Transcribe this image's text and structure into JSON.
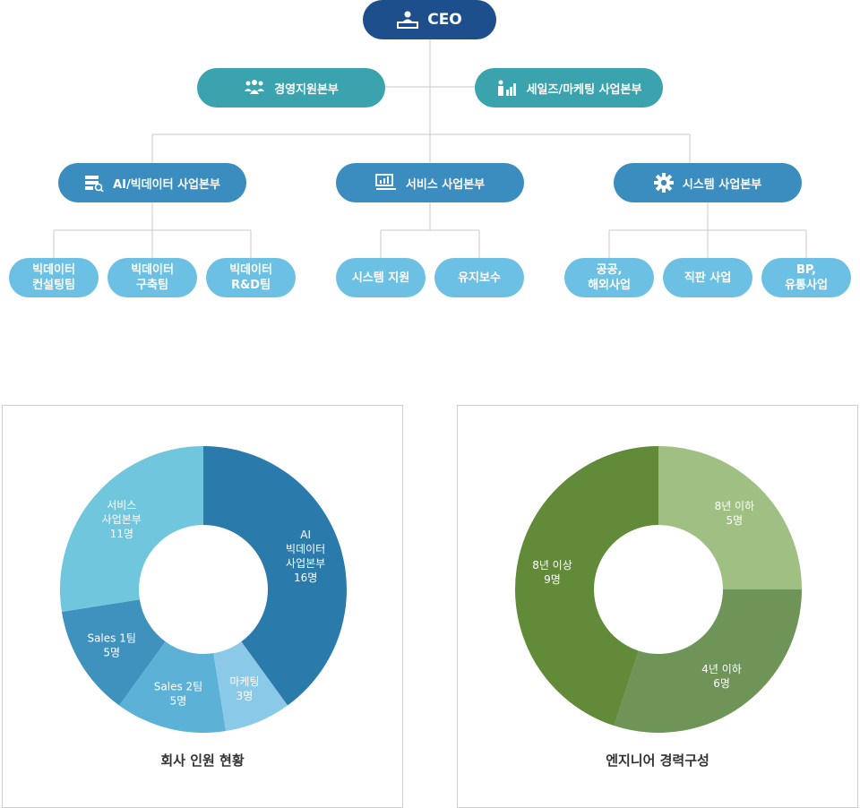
{
  "org": {
    "ceo": "CEO",
    "div_management": "경영지원본부",
    "div_sales": "세일즈/마케팅 사업본부",
    "div_ai": "AI/빅데이터 사업본부",
    "div_service": "서비스 사업본부",
    "div_system": "시스템 사업본부",
    "teams_ai": [
      {
        "l1": "빅데이터",
        "l2": "컨설팅팀"
      },
      {
        "l1": "빅데이터",
        "l2": "구축팀"
      },
      {
        "l1": "빅데이터",
        "l2": "R&D팀"
      }
    ],
    "teams_service": [
      {
        "l1": "시스템 지원"
      },
      {
        "l1": "유지보수"
      }
    ],
    "teams_system": [
      {
        "l1": "공공,",
        "l2": "해외사업"
      },
      {
        "l1": "직판 사업"
      },
      {
        "l1": "BP,",
        "l2": "유통사업"
      }
    ]
  },
  "chart_data": [
    {
      "type": "pie",
      "title": "회사 인원 현황",
      "slices": [
        {
          "l1": "AI",
          "l2": "빅데이터",
          "l3": "사업본부",
          "l4": "16명",
          "value": 16,
          "color": "#2a7aab"
        },
        {
          "l1": "마케팅",
          "l2": "3명",
          "value": 3,
          "color": "#8acae8"
        },
        {
          "l1": "Sales 2팀",
          "l2": "5명",
          "value": 5,
          "color": "#5cb2d6"
        },
        {
          "l1": "Sales 1팀",
          "l2": "5명",
          "value": 5,
          "color": "#3f92be"
        },
        {
          "l1": "서비스",
          "l2": "사업본부",
          "l3": "11명",
          "value": 11,
          "color": "#70c6dc"
        }
      ]
    },
    {
      "type": "pie",
      "title": "엔지니어 경력구성",
      "slices": [
        {
          "l1": "8년 이하",
          "l2": "5명",
          "value": 5,
          "color": "#a0c083"
        },
        {
          "l1": "4년 이하",
          "l2": "6명",
          "value": 6,
          "color": "#6f9457"
        },
        {
          "l1": "8년 이상",
          "l2": "9명",
          "value": 9,
          "color": "#618a39"
        }
      ]
    }
  ]
}
